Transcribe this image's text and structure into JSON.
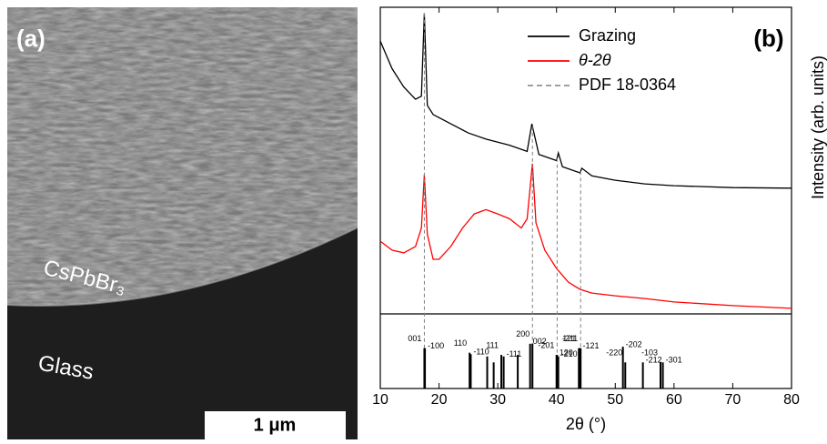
{
  "image_panel": {
    "label": "(a)",
    "film_label": "CsPbBr₃",
    "substrate_label": "Glass",
    "scale_bar": "1 μm"
  },
  "chart_data": [
    {
      "type": "line",
      "panel_label": "(b)",
      "ylabel": "Intensity (arb. units)",
      "xlim": [
        10,
        80
      ],
      "ylim": [
        0,
        100
      ],
      "legend": "top-right",
      "series": [
        {
          "name": "Grazing",
          "color": "#000000",
          "x": [
            10,
            12,
            14,
            16,
            17,
            17.5,
            18,
            19,
            22,
            25,
            28,
            32,
            35,
            35.8,
            37,
            40,
            40.3,
            41,
            44,
            44.3,
            46,
            50,
            55,
            60,
            70,
            80
          ],
          "values": [
            89,
            80,
            74,
            70,
            71,
            98,
            68,
            65,
            62,
            59,
            57,
            55,
            53,
            62,
            52,
            50,
            52.5,
            48,
            46,
            47.5,
            45,
            43.6,
            42.4,
            41.8,
            41.2,
            41
          ]
        },
        {
          "name": "θ-2θ",
          "color": "#ff0000",
          "x": [
            10,
            12,
            14,
            16,
            17,
            17.5,
            18,
            19,
            20,
            22,
            24,
            26,
            28,
            30,
            32,
            34,
            35,
            35.9,
            36.5,
            38,
            40,
            42,
            44,
            46,
            50,
            55,
            60,
            70,
            80
          ],
          "values": [
            23.7,
            20.8,
            19.9,
            22,
            28,
            45.4,
            26,
            17.8,
            17.8,
            22,
            28,
            32.6,
            34,
            32.6,
            31,
            28,
            31,
            49,
            29.7,
            20.8,
            14.8,
            10.4,
            8,
            6.8,
            5.9,
            5,
            3.9,
            2.7,
            1.8
          ]
        },
        {
          "name": "PDF 18-0364",
          "color": "#808080",
          "dashed": true,
          "x": [
            17.5,
            35.9,
            40.1,
            44.1
          ]
        }
      ]
    },
    {
      "type": "stick",
      "xlabel": "2θ (°)",
      "xlim": [
        10,
        80
      ],
      "ylim": [
        0,
        100
      ],
      "xticks": [
        10,
        20,
        30,
        40,
        50,
        60,
        70,
        80
      ],
      "color": "#000000",
      "x": [
        17.5,
        17.6,
        25.2,
        25.4,
        28.2,
        29.3,
        30.6,
        31.0,
        33.4,
        35.5,
        35.9,
        40.0,
        40.1,
        40.3,
        43.8,
        44.0,
        44.1,
        51.3,
        51.7,
        54.7,
        57.7,
        58.1
      ],
      "values": [
        54,
        54,
        48,
        46,
        43,
        35,
        45,
        43,
        45,
        60,
        60,
        45,
        45,
        43,
        54,
        54,
        54,
        56,
        35,
        35,
        35,
        35
      ],
      "labels": [
        "001",
        "-100",
        "110",
        "-110",
        null,
        null,
        "111",
        "-111",
        null,
        "002",
        "200",
        "120",
        "-201",
        "-210",
        "121",
        "-121",
        "-211",
        "-202",
        "-220",
        "-212",
        "-103",
        "-301"
      ]
    }
  ]
}
